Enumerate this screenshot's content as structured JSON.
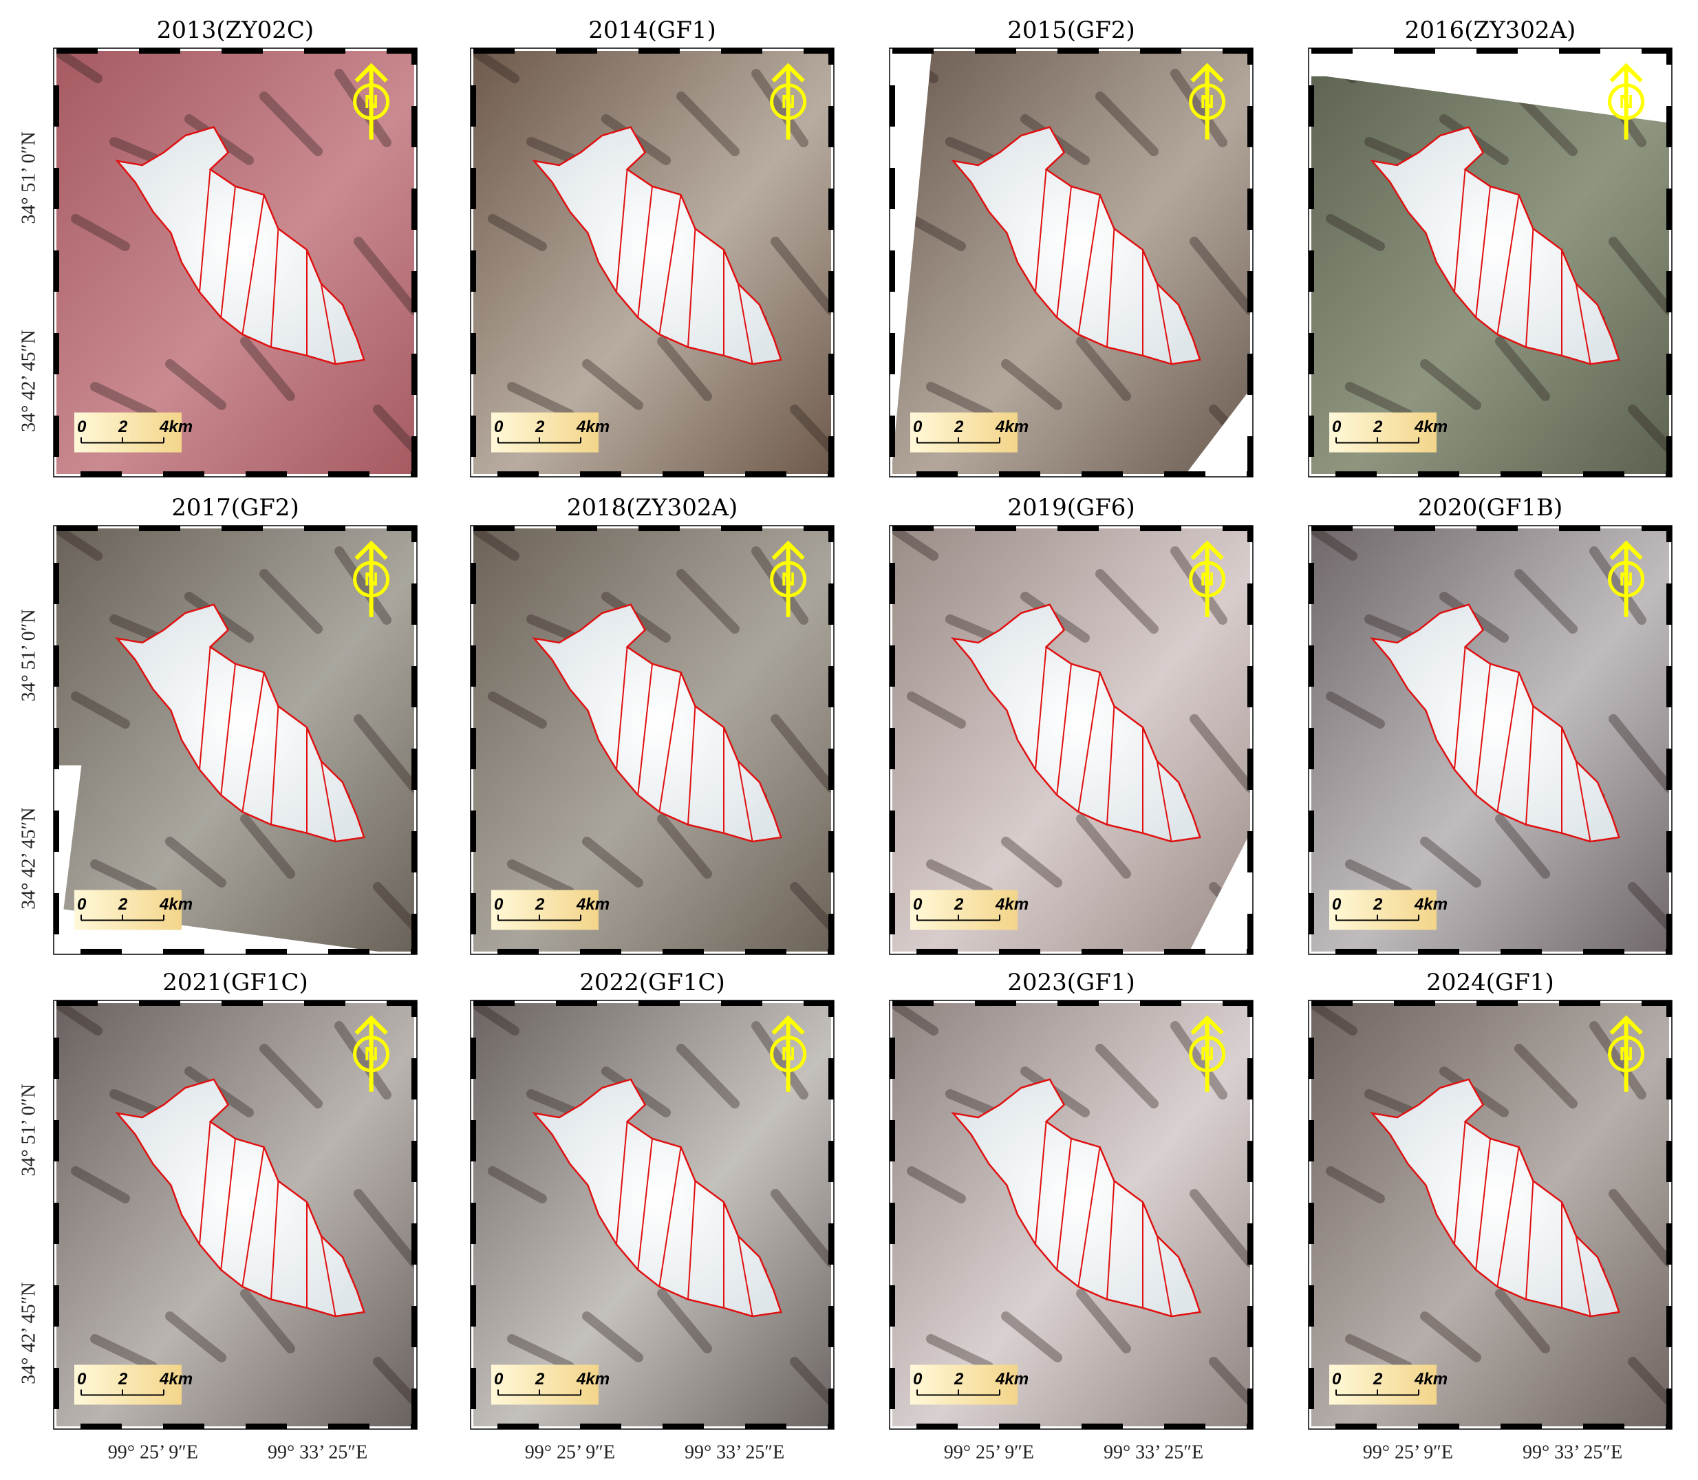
{
  "panels": [
    {
      "title": "2013(ZY02C)"
    },
    {
      "title": "2014(GF1)"
    },
    {
      "title": "2015(GF2)"
    },
    {
      "title": "2016(ZY302A)"
    },
    {
      "title": "2017(GF2)"
    },
    {
      "title": "2018(ZY302A)"
    },
    {
      "title": "2019(GF6)"
    },
    {
      "title": "2020(GF1B)"
    },
    {
      "title": "2021(GF1C)"
    },
    {
      "title": "2022(GF1C)"
    },
    {
      "title": "2023(GF1)"
    },
    {
      "title": "2024(GF1)"
    }
  ],
  "lat_labels": [
    "34° 51’ 0″N",
    "34° 42’ 45″N"
  ],
  "lon_labels": [
    "99° 25’ 9″E",
    "99° 33’ 25″E"
  ],
  "scale_bar": {
    "labels": [
      "0",
      "2",
      "4km"
    ]
  },
  "north_label": "N"
}
